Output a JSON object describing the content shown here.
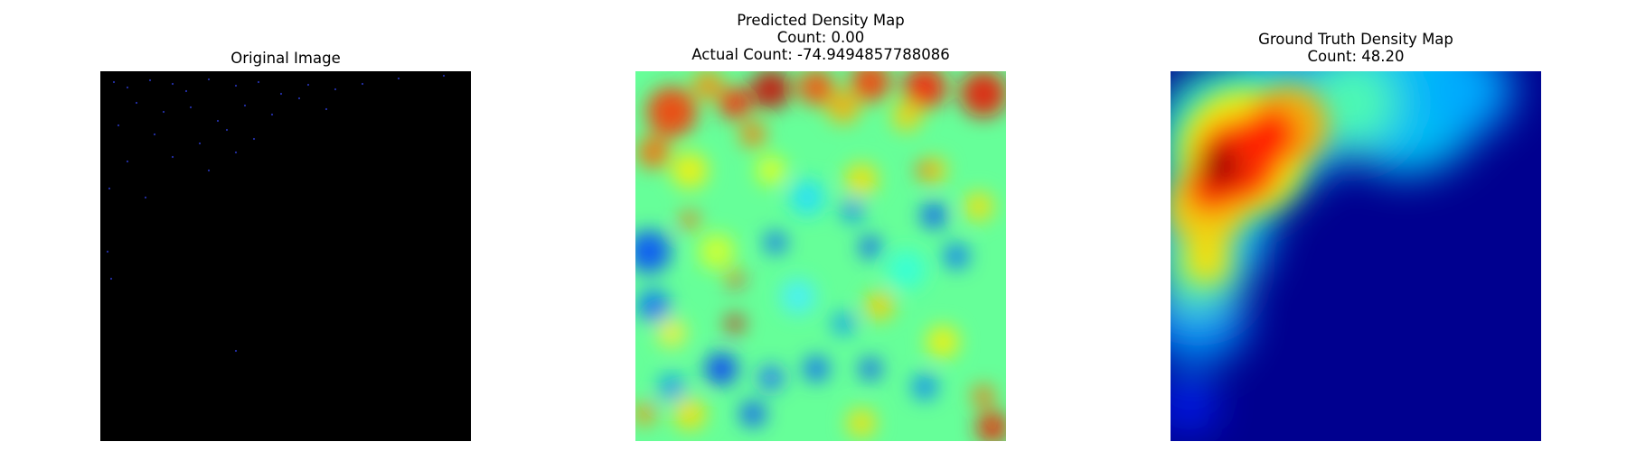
{
  "panels": [
    {
      "title_lines": [
        "Original Image"
      ]
    },
    {
      "title_lines": [
        "Predicted Density Map",
        "Count: 0.00",
        "Actual Count: -74.9494857788086"
      ]
    },
    {
      "title_lines": [
        "Ground Truth Density Map",
        "Count: 48.20"
      ]
    }
  ],
  "chart_data": [
    {
      "type": "image",
      "title": "Original Image",
      "description_colors": {
        "background": "#000000",
        "sparse_points": "#2233dd"
      }
    },
    {
      "type": "heatmap",
      "title": "Predicted Density Map\nCount: 0.00\nActual Count: -74.9494857788086",
      "colormap": "jet",
      "count": 0.0,
      "actual_count": -74.9494857788086
    },
    {
      "type": "heatmap",
      "title": "Ground Truth Density Map\nCount: 48.20",
      "colormap": "jet",
      "count": 48.2
    }
  ]
}
